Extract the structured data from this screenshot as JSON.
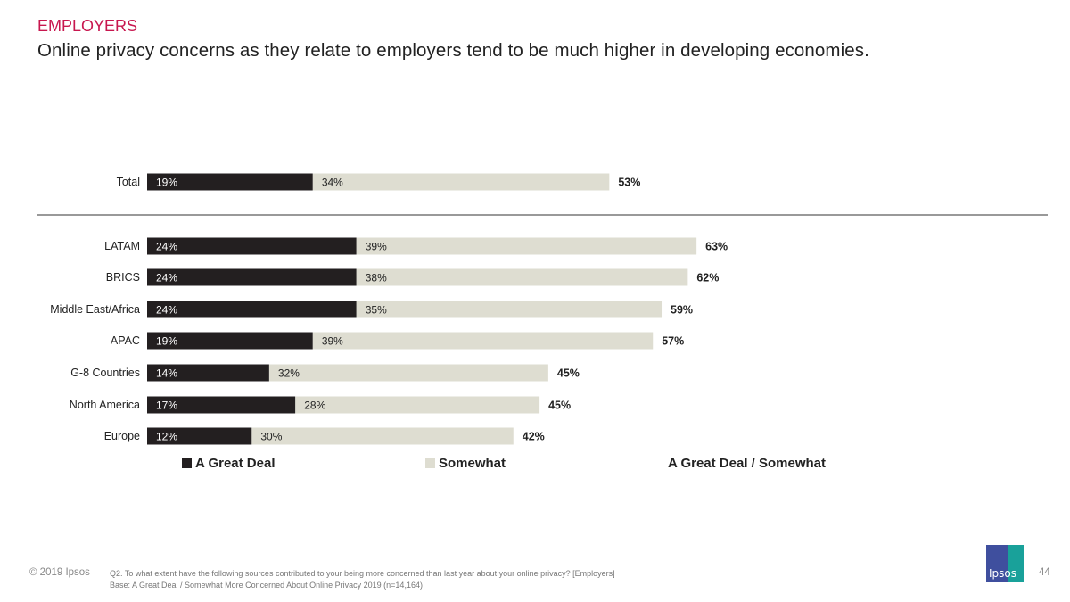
{
  "header": {
    "section": "EMPLOYERS",
    "headline": "Online privacy concerns as they relate to employers tend to be much higher in developing economies."
  },
  "chart_data": {
    "type": "bar",
    "orientation": "horizontal",
    "stacked": true,
    "categories": [
      "Total",
      "LATAM",
      "BRICS",
      "Middle East/Africa",
      "APAC",
      "G-8 Countries",
      "North America",
      "Europe"
    ],
    "series": [
      {
        "name": "A Great Deal",
        "values": [
          19,
          24,
          24,
          24,
          19,
          14,
          17,
          12
        ],
        "color": "#231f20",
        "label_color": "#ffffff"
      },
      {
        "name": "Somewhat",
        "values": [
          34,
          39,
          38,
          35,
          39,
          32,
          28,
          30
        ],
        "color": "#deddd1",
        "label_color": "#222222"
      }
    ],
    "totals": {
      "name": "A Great Deal / Somewhat",
      "values": [
        53,
        63,
        62,
        59,
        57,
        45,
        45,
        42
      ]
    },
    "value_suffix": "%",
    "xlim": [
      0,
      100
    ],
    "divider_after": "Total"
  },
  "footer": {
    "copyright": "© 2019 Ipsos",
    "question": "Q2. To what extent have the following sources contributed to your being more concerned than last year about your online privacy? [Employers]",
    "base": "Base: A Great Deal / Somewhat More Concerned About Online Privacy 2019 (n=14,164)",
    "page": "44",
    "logo": "Ipsos"
  }
}
